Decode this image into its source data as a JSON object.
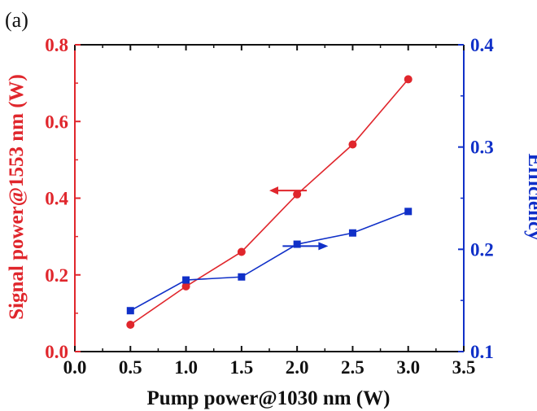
{
  "panel_label": "(a)",
  "chart_data": {
    "type": "line",
    "xlabel": "Pump power@1030 nm (W)",
    "ylabel_left": "Signal power@1553 nm (W)",
    "ylabel_right": "Efficiency",
    "xlim": [
      0.0,
      3.5
    ],
    "ylim_left": [
      0.0,
      0.8
    ],
    "ylim_right": [
      0.1,
      0.4
    ],
    "x_ticks": [
      "0.0",
      "0.5",
      "1.0",
      "1.5",
      "2.0",
      "2.5",
      "3.0",
      "3.5"
    ],
    "y_left_ticks": [
      "0.0",
      "0.2",
      "0.4",
      "0.6",
      "0.8"
    ],
    "y_right_ticks": [
      "0.1",
      "0.2",
      "0.3",
      "0.4"
    ],
    "grid": false,
    "series": [
      {
        "axis": "left",
        "color": "#e0262c",
        "marker": "circle",
        "x": [
          0.5,
          1.0,
          1.5,
          2.0,
          2.5,
          3.0
        ],
        "values": [
          0.07,
          0.17,
          0.26,
          0.41,
          0.54,
          0.71
        ]
      },
      {
        "axis": "right",
        "color": "#1030c8",
        "marker": "square",
        "x": [
          0.5,
          1.0,
          1.5,
          2.0,
          2.5,
          3.0
        ],
        "values": [
          0.14,
          0.17,
          0.173,
          0.205,
          0.216,
          0.237
        ]
      }
    ],
    "annotations": [
      {
        "type": "arrow",
        "direction": "left",
        "color": "#e0262c",
        "points_to": "left-axis"
      },
      {
        "type": "arrow",
        "direction": "right",
        "color": "#1030c8",
        "points_to": "right-axis"
      }
    ]
  }
}
